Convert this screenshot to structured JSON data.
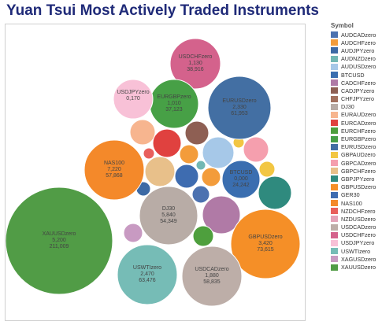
{
  "chart_data": {
    "type": "bubble",
    "title": "Yuan Tsui Most Actively Traded Instruments",
    "legend_title": "Symbol",
    "legend_position": "right",
    "legend": [
      {
        "name": "AUDCADzero",
        "color": "#4c72b0"
      },
      {
        "name": "AUDCHFzero",
        "color": "#f39c3b"
      },
      {
        "name": "AUDJPYzero",
        "color": "#3d6aa5"
      },
      {
        "name": "AUDNZDzero",
        "color": "#72b8b4"
      },
      {
        "name": "AUDUSDzero",
        "color": "#a6c8e8"
      },
      {
        "name": "BTCUSD",
        "color": "#3a6eb0"
      },
      {
        "name": "CADCHFzero",
        "color": "#b07aa6"
      },
      {
        "name": "CADJPYzero",
        "color": "#8e5f53"
      },
      {
        "name": "CHFJPYzero",
        "color": "#a3705d"
      },
      {
        "name": "DJ30",
        "color": "#b8aca6"
      },
      {
        "name": "EURAUDzero",
        "color": "#f7b58f"
      },
      {
        "name": "EURCADzero",
        "color": "#e0413f"
      },
      {
        "name": "EURCHFzero",
        "color": "#4e9f3d"
      },
      {
        "name": "EURGBPzero",
        "color": "#47a046"
      },
      {
        "name": "EURUSDzero",
        "color": "#436fa3"
      },
      {
        "name": "GBPAUDzero",
        "color": "#f2c643"
      },
      {
        "name": "GBPCADzero",
        "color": "#f59fae"
      },
      {
        "name": "GBPCHFzero",
        "color": "#e8c08a"
      },
      {
        "name": "GBPJPYzero",
        "color": "#2f8a7e"
      },
      {
        "name": "GBPUSDzero",
        "color": "#f58f27"
      },
      {
        "name": "GER30",
        "color": "#3e6cb0"
      },
      {
        "name": "NAS100",
        "color": "#f4892a"
      },
      {
        "name": "NZDCHFzero",
        "color": "#e85f5c"
      },
      {
        "name": "NZDUSDzero",
        "color": "#e4a3b8"
      },
      {
        "name": "USDCADzero",
        "color": "#bdaea8"
      },
      {
        "name": "USDCHFzero",
        "color": "#d4628c"
      },
      {
        "name": "USDJPYzero",
        "color": "#f8c1d7"
      },
      {
        "name": "USWTIzero",
        "color": "#76bcb6"
      },
      {
        "name": "XAGUSDzero",
        "color": "#c89ac2"
      },
      {
        "name": "XAUUSDzero",
        "color": "#519c46"
      }
    ],
    "labeled_bubbles": [
      {
        "name": "XAUUSDzero",
        "value1": "5,200",
        "value2": "211,009",
        "color": "#519c46"
      },
      {
        "name": "GBPUSDzero",
        "value1": "3,420",
        "value2": "73,615",
        "color": "#f58f27"
      },
      {
        "name": "USWTIzero",
        "value1": "2,470",
        "value2": "63,476",
        "color": "#76bcb6"
      },
      {
        "name": "EURUSDzero",
        "value1": "2,330",
        "value2": "61,953",
        "color": "#436fa3"
      },
      {
        "name": "USDCADzero",
        "value1": "1,880",
        "value2": "58,835",
        "color": "#bdaea8"
      },
      {
        "name": "NAS100",
        "value1": "7,220",
        "value2": "57,868",
        "color": "#f4892a"
      },
      {
        "name": "DJ30",
        "value1": "5,840",
        "value2": "54,349",
        "color": "#b8aca6"
      },
      {
        "name": "USDCHFzero",
        "value1": "1,130",
        "value2": "38,916",
        "color": "#d4628c"
      },
      {
        "name": "EURGBPzero",
        "value1": "1,010",
        "value2": "37,123",
        "color": "#47a046"
      },
      {
        "name": "BTCUSD",
        "value1": "0,000",
        "value2": "24,242",
        "color": "#3a6eb0"
      },
      {
        "name": "USDJPYzero",
        "value1": "0,170",
        "value2": "",
        "color": "#f8c1d7"
      }
    ]
  }
}
